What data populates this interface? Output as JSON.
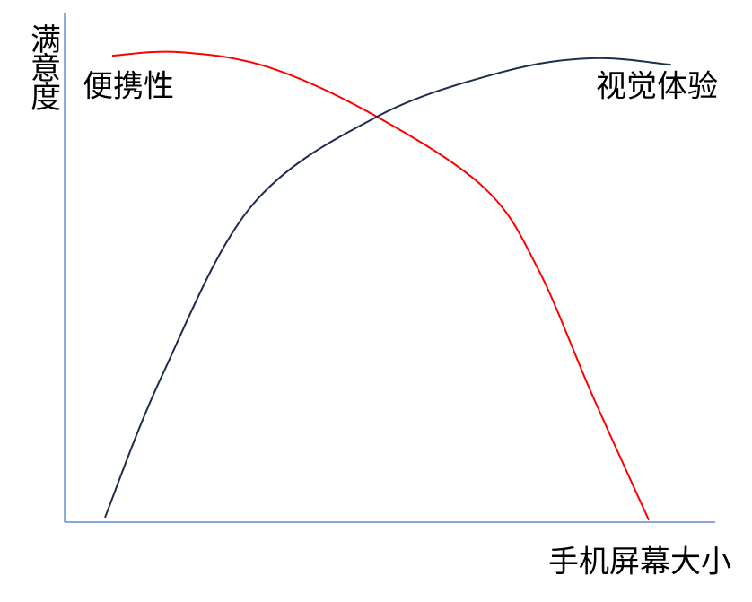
{
  "chart_data": {
    "type": "line",
    "x_label": "手机屏幕大小",
    "y_label": "满意度",
    "xlim": [
      0,
      100
    ],
    "ylim": [
      0,
      100
    ],
    "series": [
      {
        "name": "便携性",
        "color": "#ff0000",
        "x": [
          7.3,
          17.7,
          31.4,
          48.0,
          64.6,
          72.8,
          81.1,
          89.8
        ],
        "values": [
          91.7,
          92.4,
          89.4,
          79.7,
          65.6,
          49.7,
          25.0,
          0.4
        ]
      },
      {
        "name": "视觉体验",
        "color": "#1f2d4d",
        "x": [
          6.2,
          14.9,
          28.7,
          48.0,
          67.3,
          81.1,
          93.2
        ],
        "values": [
          0.9,
          28.6,
          62.1,
          79.7,
          88.5,
          91.2,
          89.9
        ]
      }
    ]
  }
}
